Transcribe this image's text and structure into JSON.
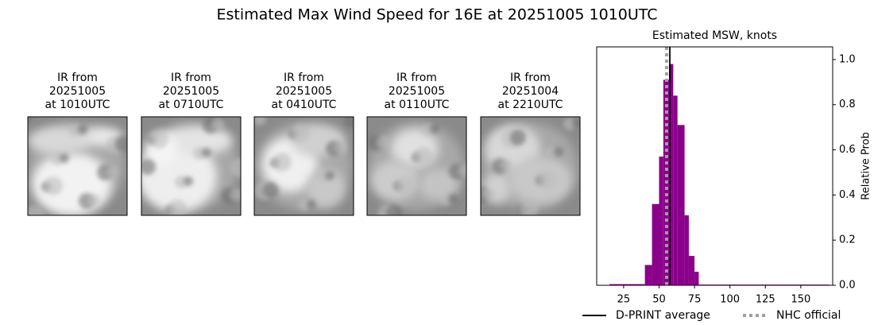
{
  "title": "Estimated Max Wind Speed for 16E at 20251005 1010UTC",
  "panels": [
    {
      "title": [
        "IR from",
        "20251005",
        "at 1010UTC"
      ]
    },
    {
      "title": [
        "IR from",
        "20251005",
        "at 0710UTC"
      ]
    },
    {
      "title": [
        "IR from",
        "20251005",
        "at 0410UTC"
      ]
    },
    {
      "title": [
        "IR from",
        "20251005",
        "at 0110UTC"
      ]
    },
    {
      "title": [
        "IR from",
        "20251004",
        "at 2210UTC"
      ]
    }
  ],
  "chart_data": {
    "type": "histogram",
    "title": "Estimated MSW, knots",
    "y_label": "Relative Prob",
    "bins": [
      15,
      40,
      45,
      50,
      53,
      57,
      60,
      63,
      68,
      71,
      75,
      78,
      170
    ],
    "values": [
      0.005,
      0.09,
      0.36,
      0.57,
      0.91,
      0.98,
      0.84,
      0.71,
      0.31,
      0.13,
      0.06,
      0.003
    ],
    "color": "#8b008b",
    "xlim": [
      6,
      172.5
    ],
    "xticks": [
      25,
      50,
      75,
      100,
      125,
      150
    ],
    "ylim": [
      0,
      1.056
    ],
    "yticks": [
      {
        "value": 0,
        "label": "0.0"
      },
      {
        "value": 0.2,
        "label": "0.2"
      },
      {
        "value": 0.4,
        "label": "0.4"
      },
      {
        "value": 0.6,
        "label": "0.6"
      },
      {
        "value": 0.8,
        "label": "0.8"
      },
      {
        "value": 1,
        "label": "1.0"
      }
    ],
    "y_axis_side": "right",
    "reference_lines": [
      {
        "name": "D-PRINT average",
        "value": 57.6,
        "color": "#000000",
        "style": "solid"
      },
      {
        "name": "NHC official",
        "value": 55.3,
        "color": "#a0a0a0",
        "style": "dotted"
      }
    ],
    "legend": "below"
  }
}
